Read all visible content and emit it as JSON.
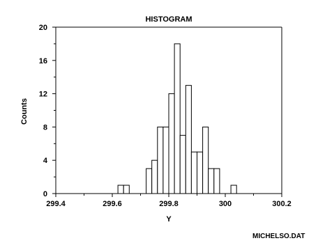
{
  "chart_data": {
    "type": "bar",
    "title": "HISTOGRAM",
    "xlabel": "Y",
    "ylabel": "Counts",
    "xlim": [
      299.4,
      300.2
    ],
    "ylim": [
      0,
      20
    ],
    "xticks": [
      {
        "value": 299.4,
        "label": "299.4"
      },
      {
        "value": 299.6,
        "label": "299.6"
      },
      {
        "value": 299.8,
        "label": "299.8"
      },
      {
        "value": 300.0,
        "label": "300"
      },
      {
        "value": 300.2,
        "label": "300.2"
      }
    ],
    "yticks": [
      {
        "value": 0,
        "label": "0"
      },
      {
        "value": 4,
        "label": "4"
      },
      {
        "value": 8,
        "label": "8"
      },
      {
        "value": 12,
        "label": "12"
      },
      {
        "value": 16,
        "label": "16"
      },
      {
        "value": 20,
        "label": "20"
      }
    ],
    "bin_width": 0.02,
    "bins": [
      {
        "start": 299.62,
        "count": 1
      },
      {
        "start": 299.64,
        "count": 1
      },
      {
        "start": 299.72,
        "count": 3
      },
      {
        "start": 299.74,
        "count": 4
      },
      {
        "start": 299.76,
        "count": 8
      },
      {
        "start": 299.78,
        "count": 8
      },
      {
        "start": 299.8,
        "count": 12
      },
      {
        "start": 299.82,
        "count": 18
      },
      {
        "start": 299.84,
        "count": 7
      },
      {
        "start": 299.86,
        "count": 13
      },
      {
        "start": 299.88,
        "count": 5
      },
      {
        "start": 299.9,
        "count": 5
      },
      {
        "start": 299.92,
        "count": 8
      },
      {
        "start": 299.94,
        "count": 3
      },
      {
        "start": 299.96,
        "count": 3
      },
      {
        "start": 300.02,
        "count": 1
      }
    ],
    "grid": false,
    "legend": "none"
  },
  "footer_label": "MICHELSO.DAT"
}
